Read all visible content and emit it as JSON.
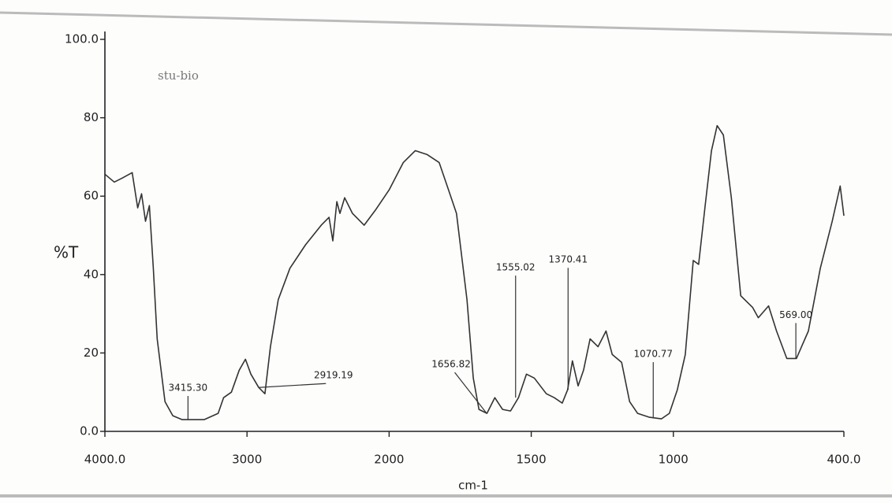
{
  "chart_data": {
    "type": "line",
    "annotation": "stu-bio",
    "x_label": "cm-1",
    "y_label": "%T",
    "xlim": [
      4000,
      400
    ],
    "x_scale_break": 2000,
    "xticks": [
      {
        "value": 4000,
        "label": "4000.0"
      },
      3000,
      2000,
      1500,
      1000,
      {
        "value": 400,
        "label": "400.0"
      }
    ],
    "ylim": [
      0,
      100
    ],
    "yticks": [
      {
        "value": 0,
        "label": "0.0"
      },
      20,
      40,
      60,
      80,
      {
        "value": 100,
        "label": "100.0"
      }
    ],
    "grid": false,
    "series": [
      {
        "color": "#333333",
        "x": [
          4000,
          3934,
          3879,
          3808,
          3769,
          3742,
          3714,
          3687,
          3659,
          3632,
          3577,
          3522,
          3456,
          3302,
          3203,
          3165,
          3110,
          3055,
          3011,
          2973,
          2918,
          2874,
          2835,
          2780,
          2698,
          2588,
          2478,
          2423,
          2396,
          2368,
          2346,
          2313,
          2258,
          2176,
          2093,
          2000,
          1950,
          1908,
          1866,
          1824,
          1791,
          1763,
          1726,
          1704,
          1684,
          1656,
          1628,
          1601,
          1573,
          1545,
          1517,
          1489,
          1447,
          1419,
          1391,
          1372,
          1355,
          1335,
          1316,
          1293,
          1265,
          1237,
          1215,
          1182,
          1154,
          1126,
          1084,
          1042,
          1014,
          986,
          958,
          930,
          911,
          888,
          866,
          846,
          824,
          796,
          763,
          721,
          701,
          665,
          637,
          601,
          567,
          525,
          483,
          441,
          413,
          400
        ],
        "values": [
          65.6,
          63.6,
          64.6,
          66,
          57,
          60.6,
          53.6,
          57.6,
          41.6,
          23.6,
          7.6,
          4,
          3,
          3,
          4.6,
          8.6,
          10,
          15.6,
          18.4,
          14.6,
          11.2,
          9.6,
          21.6,
          33.6,
          41.6,
          47.6,
          52.6,
          54.6,
          48.6,
          58.6,
          55.6,
          59.6,
          55.6,
          52.6,
          56.6,
          61.6,
          68.6,
          71.6,
          70.6,
          68.6,
          61.6,
          55.6,
          33.6,
          13.6,
          5.6,
          4.6,
          8.6,
          5.6,
          5.2,
          8.6,
          14.6,
          13.6,
          9.6,
          8.6,
          7.2,
          10.6,
          18,
          11.6,
          15.6,
          23.6,
          21.6,
          25.6,
          19.6,
          17.6,
          7.6,
          4.6,
          3.6,
          3.2,
          4.6,
          10.6,
          19.6,
          43.6,
          42.6,
          57.6,
          71.6,
          78,
          75.6,
          59.6,
          34.6,
          31.6,
          29,
          32,
          25.6,
          18.6,
          18.6,
          25.6,
          41.6,
          53.6,
          62.6,
          55
        ]
      }
    ],
    "peak_labels": [
      "3415.30",
      "2919.19",
      "1656.82",
      "1555.02",
      "1370.41",
      "1070.77",
      "569.00"
    ]
  }
}
